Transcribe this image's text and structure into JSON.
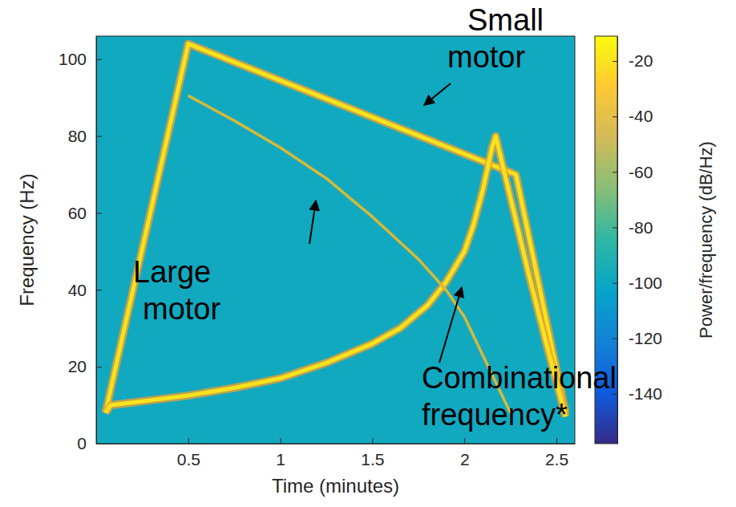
{
  "chart_data": {
    "type": "line",
    "xlabel": "Time (minutes)",
    "ylabel": "Frequency (Hz)",
    "xlim": [
      0,
      2.6
    ],
    "xticks": [
      0.5,
      1,
      1.5,
      2,
      2.5
    ],
    "ylim": [
      0,
      106
    ],
    "yticks": [
      0,
      20,
      40,
      60,
      80,
      100
    ],
    "noise_floor": -98,
    "colorbar": {
      "label": "Power/frequency (dB/Hz)",
      "lim": [
        -158,
        -11
      ],
      "ticks": [
        -140,
        -120,
        -100,
        -80,
        -60,
        -40,
        -20
      ]
    },
    "series": [
      {
        "name": "Small motor",
        "color": "#f8e21c",
        "x": [
          0.05,
          0.5,
          2.28,
          2.55
        ],
        "values": [
          8,
          104,
          70,
          8
        ]
      },
      {
        "name": "Large motor",
        "color": "#f8e21c",
        "x": [
          0.05,
          0.08,
          0.25,
          0.5,
          0.75,
          1,
          1.25,
          1.5,
          1.65,
          1.8,
          1.9,
          2,
          2.05,
          2.1,
          2.15,
          2.17,
          2.25,
          2.35,
          2.45,
          2.55
        ],
        "values": [
          8,
          10,
          11,
          12.5,
          14.5,
          17,
          21,
          26,
          30,
          36,
          42,
          50,
          57,
          66,
          77,
          80,
          64,
          44,
          25,
          7
        ]
      },
      {
        "name": "Combinational frequency*",
        "color": "#c9c43c",
        "x": [
          0.5,
          0.75,
          1,
          1.25,
          1.5,
          1.75,
          1.9,
          2,
          2.1,
          2.2,
          2.25
        ],
        "values": [
          90.5,
          84,
          77,
          69,
          59,
          48,
          40,
          33,
          23,
          13,
          8
        ]
      }
    ]
  }
}
